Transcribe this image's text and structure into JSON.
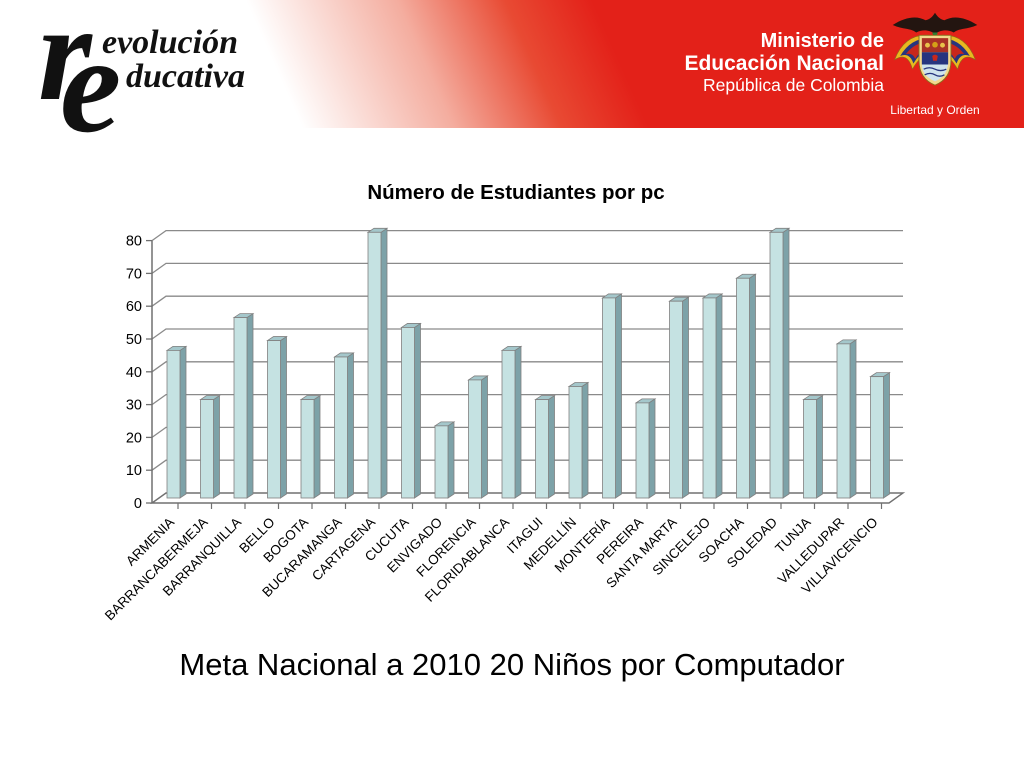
{
  "header": {
    "logo": {
      "big_r": "r",
      "word_top": "evolución",
      "big_e": "e",
      "word_bottom": "ducativa"
    },
    "ministry": {
      "line1": "Ministerio de",
      "line2": "Educación Nacional",
      "line3": "República de Colombia"
    },
    "emblem": {
      "motto": "Libertad y Orden"
    },
    "colors": {
      "band_red": "#e32119"
    }
  },
  "chart_data": {
    "type": "bar",
    "style": "3d-column",
    "title": "Número de Estudiantes por pc",
    "xlabel": "",
    "ylabel": "",
    "ylim": [
      0,
      80
    ],
    "ytick_step": 10,
    "grid": true,
    "legend": "none",
    "categories": [
      "ARMENIA",
      "BARRANCABERMEJA",
      "BARRANQUILLA",
      "BELLO",
      "BOGOTA",
      "BUCARAMANGA",
      "CARTAGENA",
      "CUCUTA",
      "ENVIGADO",
      "FLORENCIA",
      "FLORIDABLANCA",
      "ITAGUI",
      "MEDELLÍN",
      "MONTERÍA",
      "PEREIRA",
      "SANTA MARTA",
      "SINCELEJO",
      "SOACHA",
      "SOLEDAD",
      "TUNJA",
      "VALLEDUPAR",
      "VILLAVICENCIO"
    ],
    "values": [
      45,
      30,
      55,
      48,
      30,
      43,
      81,
      52,
      22,
      36,
      45,
      30,
      34,
      61,
      29,
      60,
      61,
      67,
      81,
      30,
      47,
      37
    ],
    "colors": {
      "bar_front": "#c5e2e2",
      "bar_side": "#7da2a8",
      "bar_top": "#a4c7cb",
      "bar_stroke": "#808080",
      "gridline": "#8a8a8a",
      "axis": "#707070",
      "label_text": "#000000"
    }
  },
  "caption": "Meta Nacional a 2010 20 Niños por Computador"
}
